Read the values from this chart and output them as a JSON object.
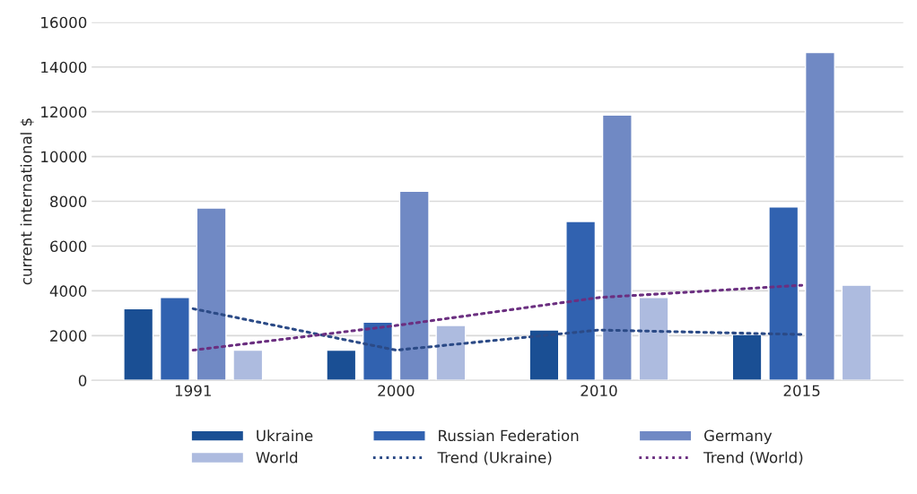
{
  "chart_data": {
    "type": "bar",
    "ylabel": "current international $",
    "categories": [
      "1991",
      "2000",
      "2010",
      "2015"
    ],
    "series": [
      {
        "name": "Ukraine",
        "color": "#1a4f94",
        "values": [
          3200,
          1350,
          2250,
          2050
        ]
      },
      {
        "name": "Russian Federation",
        "color": "#3162b0",
        "values": [
          3700,
          2600,
          7100,
          7750
        ]
      },
      {
        "name": "Germany",
        "color": "#7089c4",
        "values": [
          7700,
          8450,
          11850,
          14650
        ]
      },
      {
        "name": "World",
        "color": "#adbbdf",
        "values": [
          1350,
          2450,
          3700,
          4250
        ]
      },
      {
        "name": "Trend (Ukraine)",
        "type": "line",
        "line_style": "dotted",
        "color": "#2b4a86",
        "values": [
          3200,
          1350,
          2250,
          2050
        ]
      },
      {
        "name": "Trend (World)",
        "type": "line",
        "line_style": "dotted",
        "color": "#6b2f80",
        "values": [
          1350,
          2450,
          3700,
          4250
        ]
      }
    ],
    "ylim": [
      0,
      16000
    ],
    "yticks": [
      0,
      2000,
      4000,
      6000,
      8000,
      10000,
      12000,
      14000,
      16000
    ],
    "grid": "y",
    "legend": "bottom",
    "marker": "none"
  }
}
